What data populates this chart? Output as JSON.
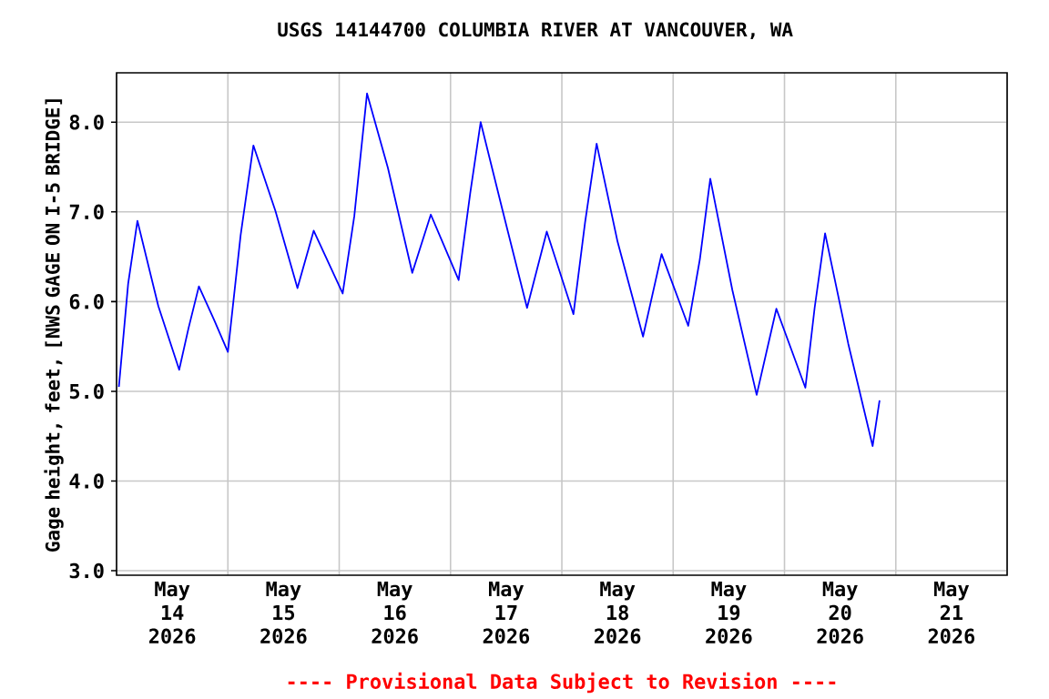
{
  "chart_data": {
    "type": "line",
    "title": "USGS 14144700 COLUMBIA RIVER AT VANCOUVER, WA",
    "ylabel": "Gage height, feet, [NWS GAGE ON I-5 BRIDGE]",
    "annotations": [
      "---- Provisional Data Subject to Revision ----"
    ],
    "x": [
      "2026-05-14T00:30",
      "2026-05-14T02:30",
      "2026-05-14T04:30",
      "2026-05-14T09:00",
      "2026-05-14T13:30",
      "2026-05-14T15:30",
      "2026-05-14T17:45",
      "2026-05-14T21:00",
      "2026-05-15T00:00",
      "2026-05-15T02:45",
      "2026-05-15T05:30",
      "2026-05-15T10:15",
      "2026-05-15T15:00",
      "2026-05-15T18:30",
      "2026-05-16T00:45",
      "2026-05-16T03:15",
      "2026-05-16T06:00",
      "2026-05-16T10:30",
      "2026-05-16T15:45",
      "2026-05-16T19:45",
      "2026-05-17T01:45",
      "2026-05-17T04:15",
      "2026-05-17T06:30",
      "2026-05-17T11:15",
      "2026-05-17T16:30",
      "2026-05-17T20:45",
      "2026-05-18T02:30",
      "2026-05-18T05:00",
      "2026-05-18T07:30",
      "2026-05-18T12:00",
      "2026-05-18T17:30",
      "2026-05-18T21:30",
      "2026-05-19T03:15",
      "2026-05-19T05:45",
      "2026-05-19T08:00",
      "2026-05-19T12:45",
      "2026-05-19T18:00",
      "2026-05-19T22:15",
      "2026-05-20T04:30",
      "2026-05-20T06:30",
      "2026-05-20T08:45",
      "2026-05-20T13:45",
      "2026-05-20T19:00",
      "2026-05-20T20:30"
    ],
    "series": [
      {
        "color": "#0000ff",
        "values": [
          5.05,
          6.2,
          6.9,
          5.95,
          5.24,
          5.7,
          6.17,
          5.8,
          5.44,
          6.74,
          7.74,
          7.01,
          6.15,
          6.79,
          6.09,
          6.95,
          8.32,
          7.49,
          6.32,
          6.97,
          6.24,
          7.21,
          8.0,
          7.01,
          5.93,
          6.78,
          5.86,
          6.88,
          7.76,
          6.67,
          5.61,
          6.53,
          5.73,
          6.47,
          7.37,
          6.13,
          4.96,
          5.92,
          5.04,
          5.93,
          6.76,
          5.53,
          4.39,
          4.9
        ]
      }
    ],
    "xlim": [
      "2026-05-14T00:00",
      "2026-05-22T00:00"
    ],
    "ylim": [
      2.95,
      8.55
    ],
    "xticks": [
      {
        "value": "2026-05-14T00:00",
        "label": null
      },
      {
        "value": "2026-05-15T00:00",
        "label": null
      },
      {
        "value": "2026-05-16T00:00",
        "label": null
      },
      {
        "value": "2026-05-17T00:00",
        "label": null
      },
      {
        "value": "2026-05-18T00:00",
        "label": null
      },
      {
        "value": "2026-05-19T00:00",
        "label": null
      },
      {
        "value": "2026-05-20T00:00",
        "label": null
      },
      {
        "value": "2026-05-21T00:00",
        "label": null
      },
      {
        "value": "2026-05-22T00:00",
        "label": null
      },
      {
        "value": "2026-05-14T12:00",
        "label": "May 14 2026"
      },
      {
        "value": "2026-05-15T12:00",
        "label": "May 15 2026"
      },
      {
        "value": "2026-05-16T12:00",
        "label": "May 16 2026"
      },
      {
        "value": "2026-05-17T12:00",
        "label": "May 17 2026"
      },
      {
        "value": "2026-05-18T12:00",
        "label": "May 18 2026"
      },
      {
        "value": "2026-05-19T12:00",
        "label": "May 19 2026"
      },
      {
        "value": "2026-05-20T12:00",
        "label": "May 20 2026"
      },
      {
        "value": "2026-05-21T12:00",
        "label": "May 21 2026"
      }
    ],
    "yticks": [
      {
        "value": 3,
        "label": "3.0"
      },
      {
        "value": 4,
        "label": "4.0"
      },
      {
        "value": 5,
        "label": "5.0"
      },
      {
        "value": 6,
        "label": "6.0"
      },
      {
        "value": 7,
        "label": "7.0"
      },
      {
        "value": 8,
        "label": "8.0"
      }
    ],
    "grid": true
  }
}
